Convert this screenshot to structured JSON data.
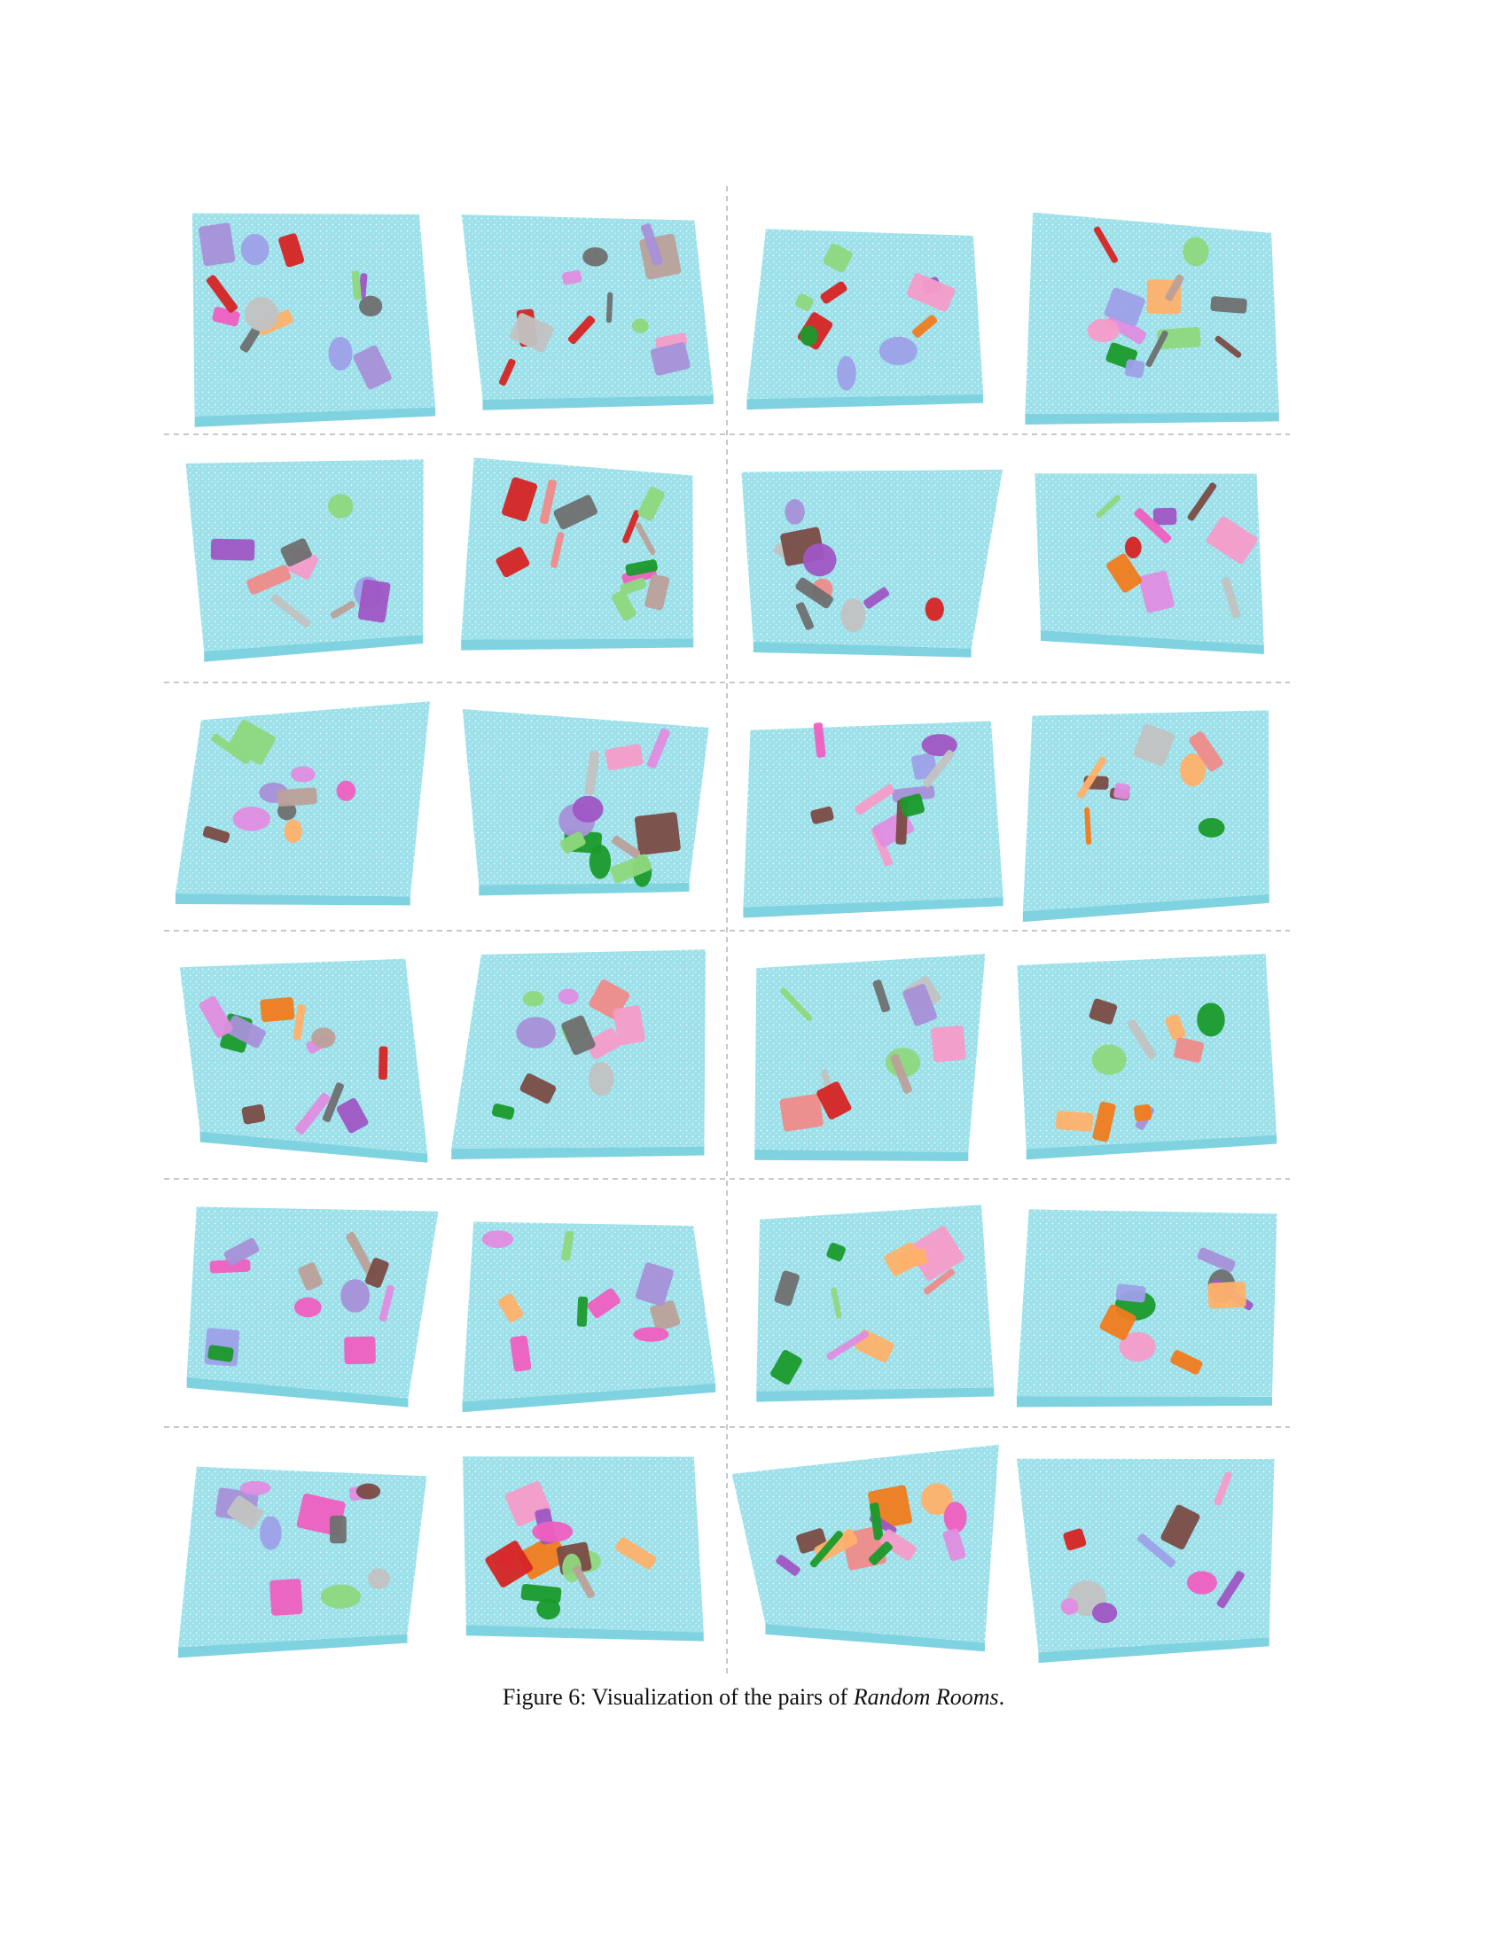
{
  "figure": {
    "caption_prefix": "Figure 6: Visualization of the pairs of ",
    "caption_emph": "Random Rooms",
    "caption_suffix": ".",
    "rows": 6,
    "pairs_per_row": 2,
    "floor_color": "#8fdbe5",
    "divider_color": "#b5b5b5",
    "object_palette": [
      "#f08a8a",
      "#d62424",
      "#f07b1e",
      "#8ed87e",
      "#a890d8",
      "#bca09a",
      "#ffb16b",
      "#c2c2c2",
      "#f59cc9",
      "#7b4b44",
      "#1a9a2b",
      "#9f56c4",
      "#ef5fc0",
      "#9ea0e8",
      "#6f6f6f",
      "#e08de0"
    ]
  }
}
